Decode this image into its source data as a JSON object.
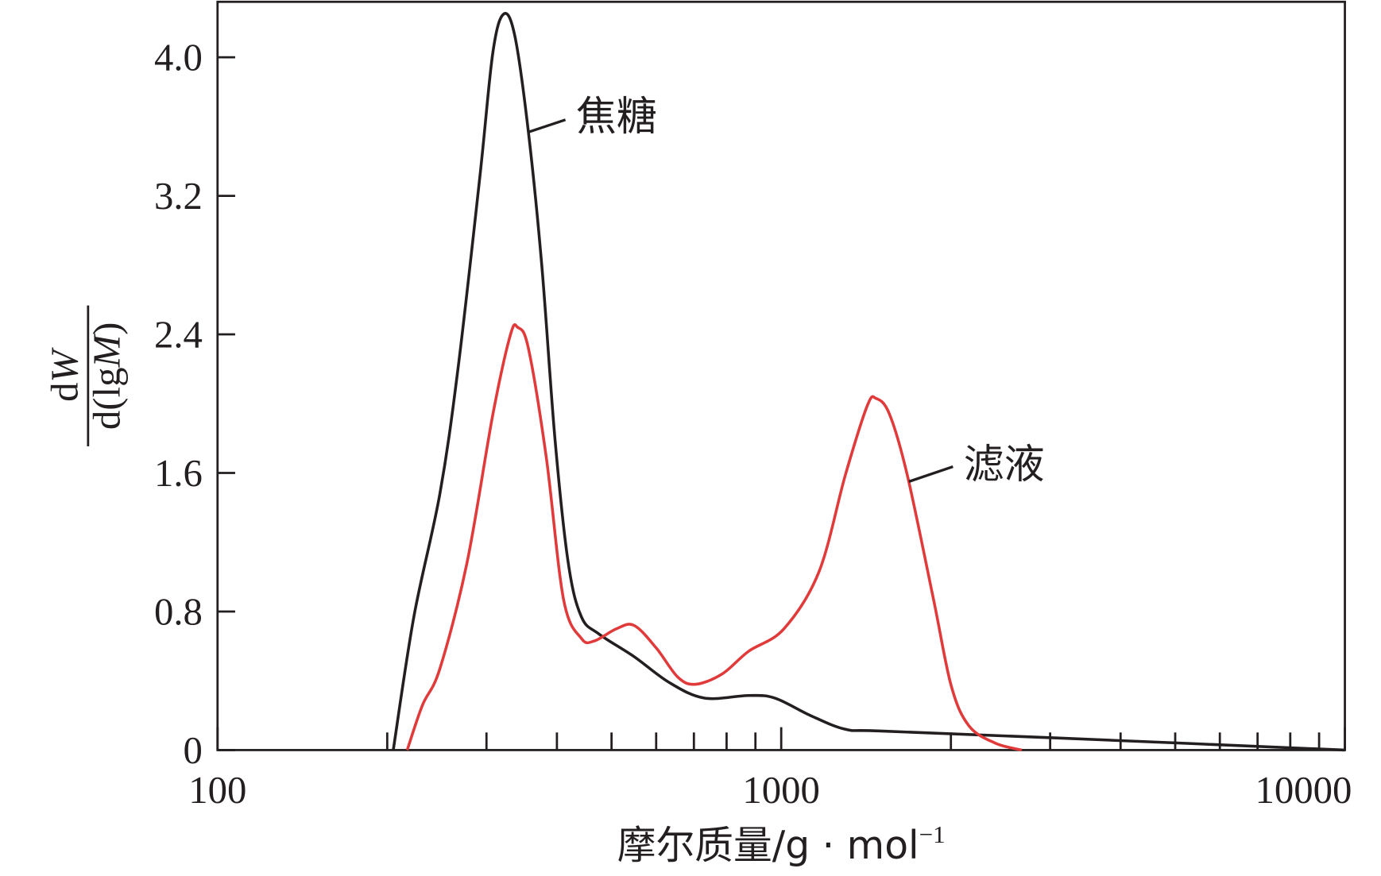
{
  "chart_data": {
    "type": "line",
    "title": "",
    "xlabel": "摩尔质量/g · mol",
    "xlabel_superscript": "−1",
    "ylabel": {
      "numerator_d": "d",
      "numerator_var": "W",
      "denominator_pre": "d(lg",
      "denominator_var": "M",
      "denominator_post": ")"
    },
    "xscale": "log",
    "xlim": [
      100,
      10000
    ],
    "ylim": [
      0,
      4.3
    ],
    "xticks": [
      100,
      1000,
      10000
    ],
    "xtick_labels": [
      "100",
      "1000",
      "10000"
    ],
    "yticks": [
      0,
      0.8,
      1.6,
      2.4,
      3.2,
      4.0
    ],
    "ytick_labels": [
      "0",
      "0.8",
      "1.6",
      "2.4",
      "3.2",
      "4.0"
    ],
    "grid": false,
    "series": [
      {
        "name": "焦糖",
        "color": "#231f20",
        "x": [
          205,
          223,
          248,
          267,
          292,
          308,
          322,
          337,
          356,
          376,
          397,
          419,
          442,
          475,
          548,
          633,
          731,
          875,
          975,
          1126,
          1300,
          1502,
          3084,
          10000
        ],
        "y": [
          0,
          0.77,
          1.48,
          2.2,
          3.31,
          4.03,
          4.25,
          4.12,
          3.57,
          2.8,
          1.79,
          1.08,
          0.77,
          0.67,
          0.54,
          0.39,
          0.3,
          0.315,
          0.3,
          0.2,
          0.12,
          0.11,
          0.07,
          0
        ]
      },
      {
        "name": "滤液",
        "color": "#e03a3a",
        "x": [
          217,
          231,
          248,
          277,
          308,
          331,
          341,
          356,
          383,
          411,
          442,
          466,
          510,
          548,
          600,
          656,
          705,
          786,
          875,
          1011,
          1167,
          1300,
          1422,
          1474,
          1556,
          1673,
          1863,
          2003,
          2153,
          2398,
          2671
        ],
        "y": [
          0,
          0.26,
          0.47,
          1.08,
          1.94,
          2.4,
          2.44,
          2.32,
          1.69,
          0.87,
          0.645,
          0.63,
          0.7,
          0.72,
          0.59,
          0.42,
          0.38,
          0.44,
          0.57,
          0.7,
          1.03,
          1.59,
          1.99,
          2.03,
          1.94,
          1.59,
          0.87,
          0.37,
          0.14,
          0.04,
          0
        ]
      }
    ],
    "annotations": [
      {
        "text": "焦糖",
        "series": "焦糖",
        "at_x": 356,
        "at_y": 3.57
      },
      {
        "text": "滤液",
        "series": "滤液",
        "at_x": 1673,
        "at_y": 1.59
      }
    ]
  }
}
